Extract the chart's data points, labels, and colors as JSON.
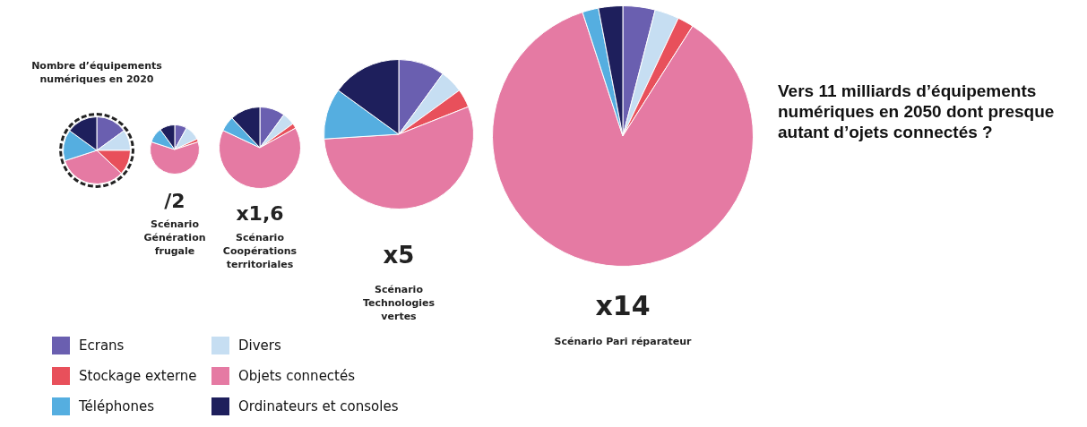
{
  "chart_data": [
    {
      "type": "pie",
      "title": "Nombre d’équipements numériques en 2020",
      "legend": "bottom right",
      "categories": [
        "Ecrans",
        "Divers",
        "Stockage externe",
        "Objets connectés",
        "Téléphones",
        "Ordinateurs et consoles"
      ],
      "colors": [
        "#6a5fb0",
        "#c6def2",
        "#e8505b",
        "#e57aa3",
        "#55aee0",
        "#1e1f5c"
      ],
      "values": [
        15,
        10,
        12,
        33,
        15,
        15
      ]
    },
    {
      "type": "pie",
      "subtitle": "/2",
      "title": "Scénario Génération frugale",
      "categories": [
        null,
        null,
        null,
        null,
        null,
        null
      ],
      "colors": [
        "#6a5fb0",
        "#c6def2",
        "#e8505b",
        "#e57aa3",
        "#55aee0",
        "#1e1f5c"
      ],
      "values": [
        8,
        10,
        2,
        60,
        10,
        10
      ]
    },
    {
      "type": "pie",
      "subtitle": "x1,6",
      "title": "Scénario Coopérations territoriales",
      "categories": [
        null,
        null,
        null,
        null,
        null,
        null
      ],
      "colors": [
        "#6a5fb0",
        "#c6def2",
        "#e8505b",
        "#e57aa3",
        "#55aee0",
        "#1e1f5c"
      ],
      "values": [
        10,
        5,
        2,
        65,
        6,
        12
      ]
    },
    {
      "type": "pie",
      "subtitle": "x5",
      "title": "Scénario Technologies vertes",
      "categories": [
        null,
        null,
        null,
        null,
        null,
        null
      ],
      "colors": [
        "#6a5fb0",
        "#c6def2",
        "#e8505b",
        "#e57aa3",
        "#55aee0",
        "#1e1f5c"
      ],
      "values": [
        10,
        5,
        4,
        55,
        11,
        15
      ]
    },
    {
      "type": "pie",
      "subtitle": "x14",
      "title": "Scénario Pari réparateur",
      "annotations": [
        "Vers 11 milliards d’équipements numériques en 2050 dont presque autant d’ojets connectés ?"
      ],
      "categories": [
        null,
        null,
        null,
        null,
        null,
        null
      ],
      "colors": [
        "#6a5fb0",
        "#c6def2",
        "#e8505b",
        "#e57aa3",
        "#55aee0",
        "#1e1f5c"
      ],
      "values": [
        4,
        3,
        2,
        86,
        2,
        3
      ]
    }
  ]
}
